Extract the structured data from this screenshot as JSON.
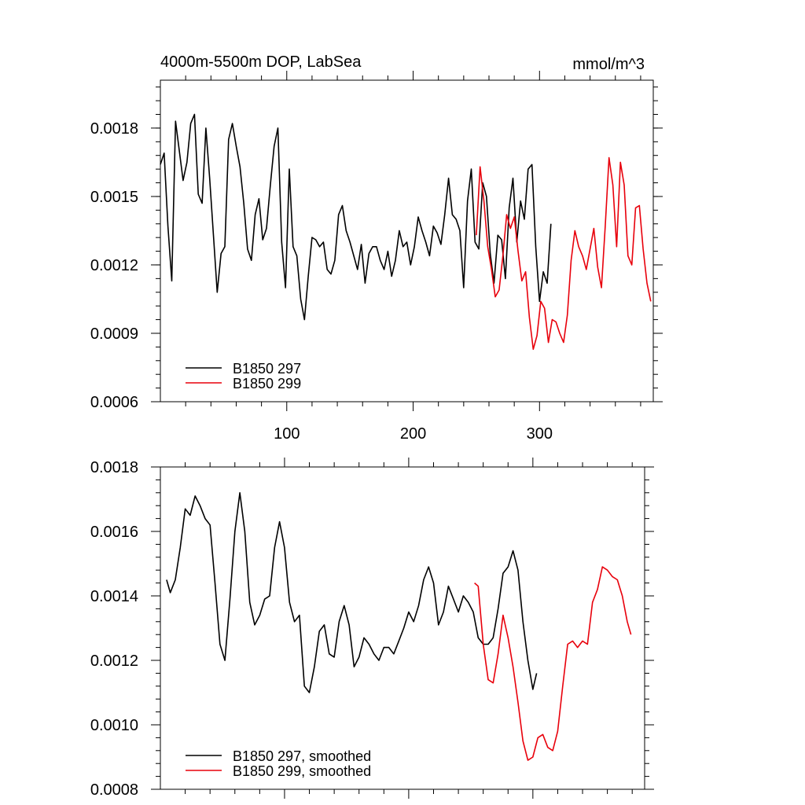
{
  "chart_data": [
    {
      "type": "line",
      "title": "4000m-5500m DOP, LabSea",
      "units": "mmol/m^3",
      "xlabel": "",
      "ylabel": "",
      "xlim": [
        0,
        390
      ],
      "ylim": [
        0.0006,
        0.00201
      ],
      "xticks": [
        100,
        200,
        300
      ],
      "xtick_labels": [
        "100",
        "200",
        "300"
      ],
      "yticks": [
        0.0006,
        0.0009,
        0.0012,
        0.0015,
        0.0018
      ],
      "ytick_labels": [
        "0.0006",
        "0.0009",
        "0.0012",
        "0.0015",
        "0.0018"
      ],
      "grid": false,
      "legend_position": "bottom-left",
      "series": [
        {
          "name": "B1850 297",
          "color": "#000000",
          "x": [
            0,
            3,
            6,
            9,
            12,
            15,
            18,
            21,
            24,
            27,
            30,
            33,
            36,
            39,
            42,
            45,
            48,
            51,
            54,
            57,
            60,
            63,
            66,
            69,
            72,
            75,
            78,
            81,
            84,
            87,
            90,
            93,
            96,
            99,
            102,
            105,
            108,
            111,
            114,
            117,
            120,
            123,
            126,
            129,
            132,
            135,
            138,
            141,
            144,
            147,
            150,
            153,
            156,
            159,
            162,
            165,
            168,
            171,
            174,
            177,
            180,
            183,
            186,
            189,
            192,
            195,
            198,
            201,
            204,
            207,
            210,
            213,
            216,
            219,
            222,
            225,
            228,
            231,
            234,
            237,
            240,
            243,
            246,
            249,
            252,
            255,
            258,
            261,
            264,
            267,
            270,
            273,
            276,
            279,
            282,
            285,
            288,
            291,
            294,
            297,
            300,
            303,
            306,
            309
          ],
          "values": [
            0.00164,
            0.00169,
            0.00137,
            0.00113,
            0.00183,
            0.0017,
            0.00157,
            0.00165,
            0.00182,
            0.00186,
            0.00151,
            0.00147,
            0.0018,
            0.00158,
            0.00133,
            0.00108,
            0.00125,
            0.00128,
            0.00175,
            0.00182,
            0.00172,
            0.00163,
            0.00147,
            0.00127,
            0.00122,
            0.00142,
            0.00149,
            0.00131,
            0.00136,
            0.00155,
            0.00172,
            0.0018,
            0.0013,
            0.0011,
            0.00162,
            0.00128,
            0.00124,
            0.00105,
            0.00096,
            0.00115,
            0.00132,
            0.00131,
            0.00128,
            0.0013,
            0.00118,
            0.00116,
            0.00122,
            0.00142,
            0.00146,
            0.00135,
            0.0013,
            0.00124,
            0.00118,
            0.00129,
            0.00112,
            0.00125,
            0.00128,
            0.00128,
            0.00122,
            0.00118,
            0.00126,
            0.00115,
            0.00122,
            0.00135,
            0.00128,
            0.0013,
            0.0012,
            0.00128,
            0.00141,
            0.00135,
            0.0013,
            0.00124,
            0.00137,
            0.00134,
            0.00129,
            0.00142,
            0.00158,
            0.00142,
            0.0014,
            0.00135,
            0.0011,
            0.00148,
            0.00162,
            0.0013,
            0.00127,
            0.00156,
            0.0015,
            0.00125,
            0.00112,
            0.00133,
            0.00131,
            0.00114,
            0.00145,
            0.00158,
            0.0013,
            0.00148,
            0.0014,
            0.00162,
            0.00164,
            0.00128,
            0.00104,
            0.00117,
            0.00112,
            0.00138
          ]
        },
        {
          "name": "B1850 299",
          "color": "#e8000b",
          "x": [
            250,
            253,
            256,
            259,
            262,
            265,
            268,
            271,
            274,
            277,
            280,
            283,
            286,
            289,
            292,
            295,
            298,
            301,
            304,
            307,
            310,
            313,
            316,
            319,
            322,
            325,
            328,
            331,
            334,
            337,
            340,
            343,
            346,
            349,
            352,
            355,
            358,
            361,
            364,
            367,
            370,
            373,
            376,
            379,
            382,
            385,
            388
          ],
          "values": [
            0.00133,
            0.00163,
            0.00148,
            0.00128,
            0.00118,
            0.00106,
            0.00109,
            0.00124,
            0.00142,
            0.00136,
            0.00141,
            0.00126,
            0.00113,
            0.00117,
            0.00097,
            0.00083,
            0.00089,
            0.00104,
            0.00101,
            0.00086,
            0.00096,
            0.00095,
            0.0009,
            0.00086,
            0.00098,
            0.00122,
            0.00135,
            0.00128,
            0.00124,
            0.00118,
            0.00127,
            0.00136,
            0.00119,
            0.0011,
            0.00137,
            0.00167,
            0.00155,
            0.00128,
            0.00165,
            0.00155,
            0.00124,
            0.0012,
            0.00145,
            0.00146,
            0.00127,
            0.00112,
            0.00104
          ]
        }
      ]
    },
    {
      "type": "line",
      "title": "",
      "xlabel": "",
      "ylabel": "",
      "xlim": [
        0,
        390
      ],
      "ylim": [
        0.0008,
        0.0018
      ],
      "xticks": [
        100,
        200,
        300
      ],
      "xtick_labels": [],
      "yticks": [
        0.0008,
        0.001,
        0.0012,
        0.0014,
        0.0016,
        0.0018
      ],
      "ytick_labels": [
        "0.0008",
        "0.0010",
        "0.0012",
        "0.0014",
        "0.0016",
        "0.0018"
      ],
      "grid": false,
      "legend_position": "bottom-left",
      "series": [
        {
          "name": "B1850 297, smoothed",
          "color": "#000000",
          "x": [
            5,
            8,
            12,
            16,
            20,
            24,
            28,
            32,
            36,
            40,
            44,
            48,
            52,
            56,
            60,
            64,
            68,
            72,
            76,
            80,
            84,
            88,
            92,
            96,
            100,
            104,
            108,
            112,
            116,
            120,
            124,
            128,
            132,
            136,
            140,
            144,
            148,
            152,
            156,
            160,
            164,
            168,
            172,
            176,
            180,
            184,
            188,
            192,
            196,
            200,
            204,
            208,
            212,
            216,
            220,
            224,
            228,
            232,
            236,
            240,
            244,
            248,
            252,
            256,
            260,
            264,
            268,
            272,
            276,
            280,
            284,
            288,
            292,
            296,
            300,
            303
          ],
          "values": [
            0.00145,
            0.00141,
            0.00145,
            0.00155,
            0.00167,
            0.00165,
            0.00171,
            0.00168,
            0.00164,
            0.00162,
            0.00144,
            0.00125,
            0.0012,
            0.00139,
            0.0016,
            0.00172,
            0.0016,
            0.00138,
            0.00131,
            0.00134,
            0.00139,
            0.0014,
            0.00155,
            0.00163,
            0.00155,
            0.00138,
            0.00132,
            0.00134,
            0.00112,
            0.0011,
            0.00118,
            0.00129,
            0.00131,
            0.00122,
            0.00121,
            0.00132,
            0.00137,
            0.00131,
            0.00118,
            0.00121,
            0.00127,
            0.00125,
            0.00122,
            0.0012,
            0.00124,
            0.00124,
            0.00122,
            0.00126,
            0.0013,
            0.00135,
            0.00132,
            0.00137,
            0.00145,
            0.00149,
            0.00144,
            0.00131,
            0.00135,
            0.00143,
            0.00139,
            0.00135,
            0.0014,
            0.00138,
            0.00135,
            0.00127,
            0.00125,
            0.00125,
            0.00127,
            0.00136,
            0.00147,
            0.00149,
            0.00154,
            0.00148,
            0.00132,
            0.0012,
            0.00111,
            0.00116
          ]
        },
        {
          "name": "B1850 299, smoothed",
          "color": "#e8000b",
          "x": [
            253,
            256,
            260,
            264,
            268,
            272,
            276,
            280,
            284,
            288,
            292,
            296,
            300,
            304,
            308,
            312,
            316,
            320,
            324,
            328,
            332,
            336,
            340,
            344,
            348,
            352,
            356,
            360,
            364,
            368,
            372,
            376,
            379
          ],
          "values": [
            0.00144,
            0.00143,
            0.00125,
            0.00114,
            0.00113,
            0.00122,
            0.00134,
            0.00127,
            0.00118,
            0.00107,
            0.00095,
            0.00089,
            0.0009,
            0.00096,
            0.00097,
            0.00093,
            0.00092,
            0.00098,
            0.00112,
            0.00125,
            0.00126,
            0.00124,
            0.00126,
            0.00125,
            0.00138,
            0.00142,
            0.00149,
            0.00148,
            0.00146,
            0.00145,
            0.0014,
            0.00132,
            0.00128
          ]
        }
      ]
    }
  ]
}
